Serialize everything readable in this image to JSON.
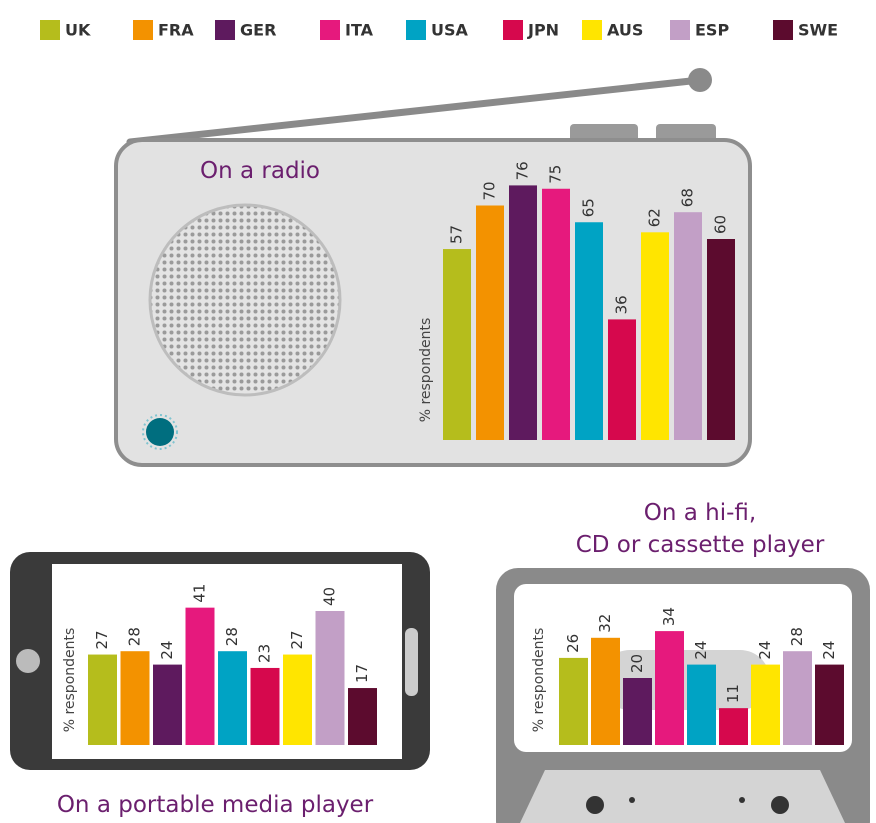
{
  "legend": [
    {
      "name": "UK",
      "color": "#b5bd1c"
    },
    {
      "name": "FRA",
      "color": "#f39200"
    },
    {
      "name": "GER",
      "color": "#5e1a5e"
    },
    {
      "name": "ITA",
      "color": "#e6197d"
    },
    {
      "name": "USA",
      "color": "#00a3c4"
    },
    {
      "name": "JPN",
      "color": "#d6084d"
    },
    {
      "name": "AUS",
      "color": "#ffe500"
    },
    {
      "name": "ESP",
      "color": "#c29fc6"
    },
    {
      "name": "SWE",
      "color": "#5c0b2e"
    }
  ],
  "chart_data": [
    {
      "type": "bar",
      "title": [
        "On a radio"
      ],
      "ylabel": "% respondents",
      "values": [
        57,
        70,
        76,
        75,
        65,
        36,
        62,
        68,
        60
      ]
    },
    {
      "type": "bar",
      "title": [
        "On a portable media player"
      ],
      "ylabel": "% respondents",
      "values": [
        27,
        28,
        24,
        41,
        28,
        23,
        27,
        40,
        17
      ]
    },
    {
      "type": "bar",
      "title": [
        "On a hi-fi,",
        "CD or cassette player"
      ],
      "ylabel": "% respondents",
      "values": [
        26,
        32,
        20,
        34,
        24,
        11,
        24,
        28,
        24
      ]
    }
  ]
}
